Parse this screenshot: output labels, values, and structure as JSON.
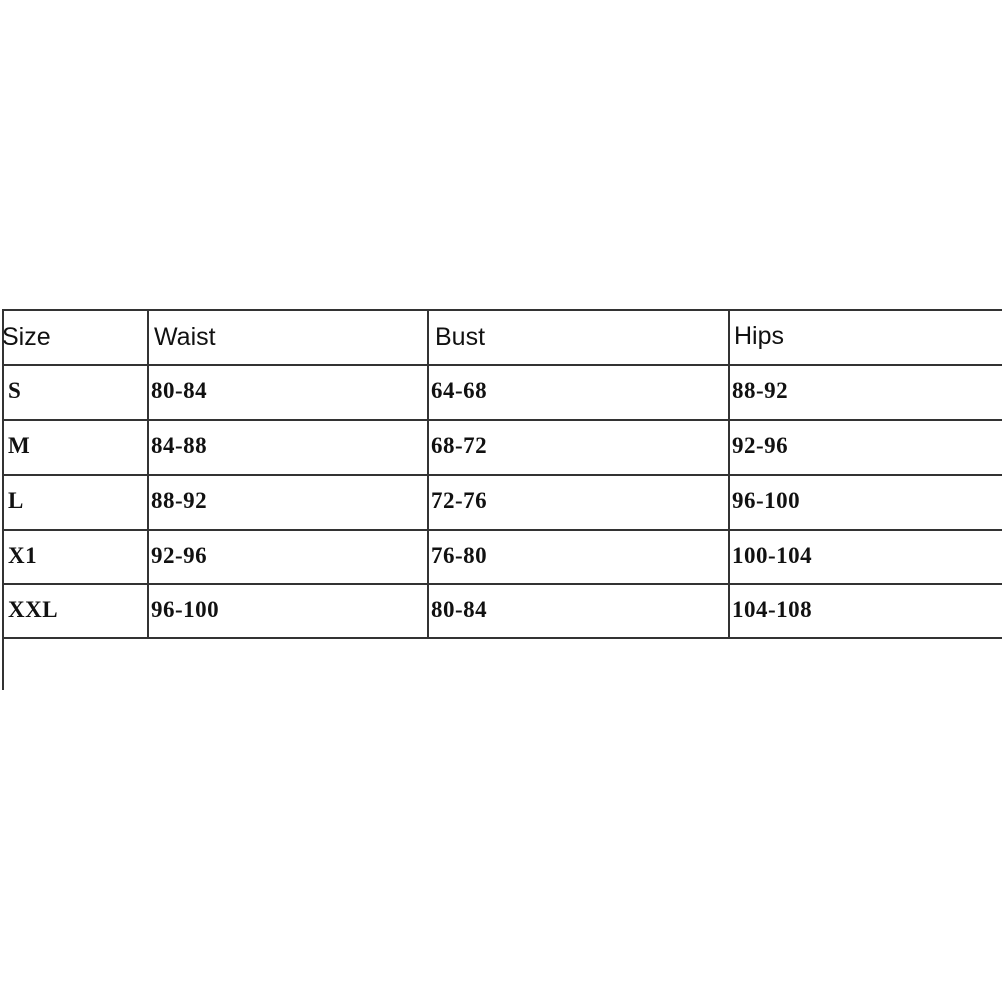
{
  "table": {
    "headers": [
      "Size",
      "Waist",
      "Bust",
      "Hips"
    ],
    "rows": [
      [
        "S",
        "80-84",
        "64-68",
        "88-92"
      ],
      [
        "M",
        "84-88",
        "68-72",
        "92-96"
      ],
      [
        "L",
        "88-92",
        "72-76",
        "96-100"
      ],
      [
        "X1",
        "92-96",
        "76-80",
        "100-104"
      ],
      [
        "XXL",
        "96-100",
        "80-84",
        "104-108"
      ]
    ]
  }
}
